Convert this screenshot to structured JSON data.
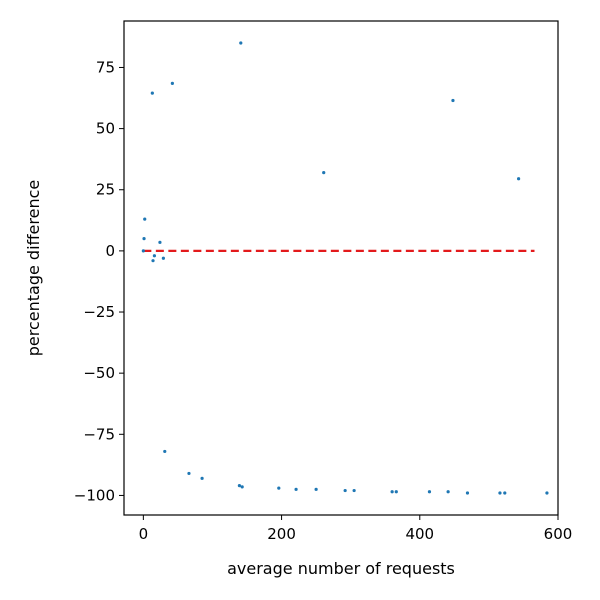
{
  "chart_data": {
    "type": "scatter",
    "title": "",
    "xlabel": "average number of requests",
    "ylabel": "percentage difference",
    "xlim": [
      -28,
      600
    ],
    "ylim": [
      -108,
      94
    ],
    "xticks": [
      0,
      200,
      400,
      600
    ],
    "yticks": [
      -100,
      -75,
      -50,
      -25,
      0,
      25,
      50,
      75
    ],
    "xtick_labels": [
      "0",
      "200",
      "400",
      "600"
    ],
    "ytick_labels": [
      "−100",
      "−75",
      "−50",
      "−25",
      "0",
      "25",
      "50",
      "75"
    ],
    "grid": false,
    "colors": {
      "points": "#1f77b4",
      "reference_line": "#e31a1c"
    },
    "reference_line": {
      "y": 0,
      "x_start": 0,
      "x_end": 566,
      "style": "dashed"
    },
    "points": [
      {
        "x": 0,
        "y": 0
      },
      {
        "x": 1,
        "y": 5
      },
      {
        "x": 2,
        "y": 13
      },
      {
        "x": 13,
        "y": 64.5
      },
      {
        "x": 14,
        "y": -4
      },
      {
        "x": 16,
        "y": -2
      },
      {
        "x": 24,
        "y": 3.5
      },
      {
        "x": 29,
        "y": -3
      },
      {
        "x": 31,
        "y": -82
      },
      {
        "x": 42,
        "y": 68.5
      },
      {
        "x": 66,
        "y": -91
      },
      {
        "x": 85,
        "y": -93
      },
      {
        "x": 139,
        "y": -96
      },
      {
        "x": 141,
        "y": 85
      },
      {
        "x": 143,
        "y": -96.5
      },
      {
        "x": 196,
        "y": -97
      },
      {
        "x": 221,
        "y": -97.5
      },
      {
        "x": 250,
        "y": -97.5
      },
      {
        "x": 261,
        "y": 32
      },
      {
        "x": 292,
        "y": -98
      },
      {
        "x": 305,
        "y": -98
      },
      {
        "x": 360,
        "y": -98.5
      },
      {
        "x": 366,
        "y": -98.5
      },
      {
        "x": 414,
        "y": -98.5
      },
      {
        "x": 441,
        "y": -98.5
      },
      {
        "x": 448,
        "y": 61.5
      },
      {
        "x": 469,
        "y": -99
      },
      {
        "x": 516,
        "y": -99
      },
      {
        "x": 523,
        "y": -99
      },
      {
        "x": 543,
        "y": 29.5
      },
      {
        "x": 584,
        "y": -99
      }
    ]
  }
}
